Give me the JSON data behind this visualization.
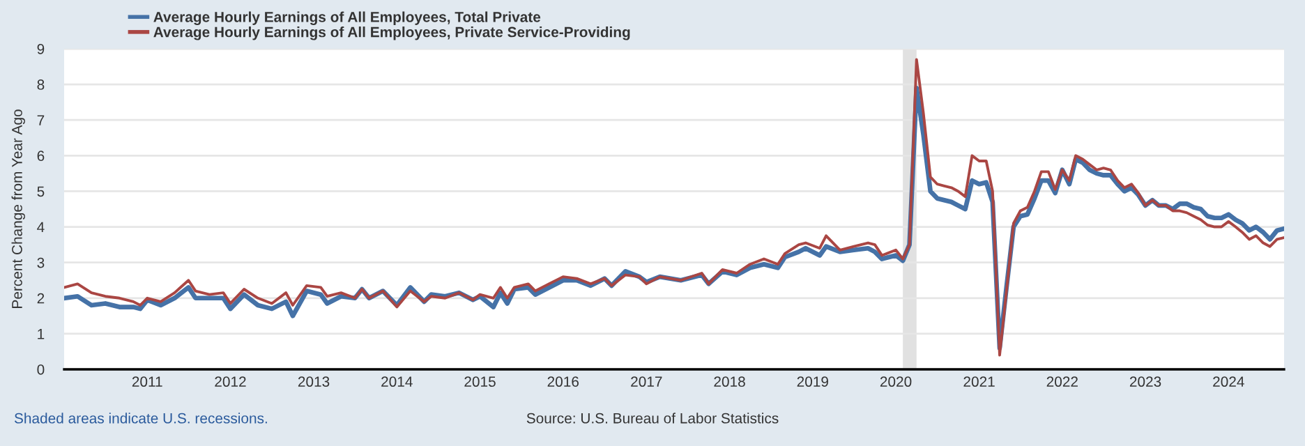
{
  "chart_data": {
    "type": "line",
    "ylabel": "Percent Change from Year Ago",
    "x": [
      "2010-01",
      "2010-03",
      "2010-05",
      "2010-07",
      "2010-09",
      "2010-11",
      "2010-12",
      "2011-01",
      "2011-03",
      "2011-05",
      "2011-07",
      "2011-08",
      "2011-10",
      "2011-12",
      "2012-01",
      "2012-03",
      "2012-05",
      "2012-07",
      "2012-09",
      "2012-10",
      "2012-12",
      "2013-02",
      "2013-03",
      "2013-05",
      "2013-07",
      "2013-08",
      "2013-09",
      "2013-11",
      "2014-01",
      "2014-03",
      "2014-05",
      "2014-06",
      "2014-08",
      "2014-10",
      "2014-12",
      "2015-01",
      "2015-03",
      "2015-04",
      "2015-05",
      "2015-06",
      "2015-08",
      "2015-09",
      "2015-11",
      "2016-01",
      "2016-03",
      "2016-05",
      "2016-07",
      "2016-08",
      "2016-10",
      "2016-12",
      "2017-01",
      "2017-03",
      "2017-06",
      "2017-09",
      "2017-10",
      "2017-12",
      "2018-02",
      "2018-04",
      "2018-06",
      "2018-08",
      "2018-09",
      "2018-11",
      "2018-12",
      "2019-02",
      "2019-03",
      "2019-05",
      "2019-07",
      "2019-09",
      "2019-10",
      "2019-11",
      "2020-01",
      "2020-02",
      "2020-03",
      "2020-04",
      "2020-05",
      "2020-06",
      "2020-07",
      "2020-08",
      "2020-09",
      "2020-10",
      "2020-11",
      "2020-12",
      "2021-01",
      "2021-02",
      "2021-03",
      "2021-04",
      "2021-05",
      "2021-06",
      "2021-07",
      "2021-08",
      "2021-09",
      "2021-10",
      "2021-11",
      "2021-12",
      "2022-01",
      "2022-02",
      "2022-03",
      "2022-04",
      "2022-05",
      "2022-06",
      "2022-07",
      "2022-08",
      "2022-09",
      "2022-10",
      "2022-11",
      "2022-12",
      "2023-01",
      "2023-02",
      "2023-03",
      "2023-04",
      "2023-05",
      "2023-06",
      "2023-07",
      "2023-08",
      "2023-09",
      "2023-10",
      "2023-11",
      "2023-12",
      "2024-01",
      "2024-02",
      "2024-03",
      "2024-04",
      "2024-05",
      "2024-06",
      "2024-07",
      "2024-08",
      "2024-09"
    ],
    "series": [
      {
        "name": "Average Hourly Earnings of All Employees, Total Private",
        "color": "#4572a7",
        "values": [
          2.0,
          2.05,
          1.8,
          1.85,
          1.75,
          1.75,
          1.7,
          1.95,
          1.8,
          2.0,
          2.3,
          2.0,
          2.0,
          2.0,
          1.7,
          2.1,
          1.8,
          1.7,
          1.9,
          1.5,
          2.2,
          2.1,
          1.85,
          2.05,
          2.0,
          2.25,
          2.0,
          2.2,
          1.8,
          2.3,
          1.9,
          2.1,
          2.05,
          2.15,
          1.95,
          2.05,
          1.75,
          2.15,
          1.85,
          2.25,
          2.3,
          2.1,
          2.3,
          2.5,
          2.5,
          2.35,
          2.55,
          2.35,
          2.75,
          2.6,
          2.45,
          2.6,
          2.5,
          2.65,
          2.4,
          2.75,
          2.65,
          2.85,
          2.95,
          2.85,
          3.15,
          3.3,
          3.4,
          3.2,
          3.45,
          3.3,
          3.35,
          3.4,
          3.3,
          3.1,
          3.2,
          3.05,
          3.5,
          7.9,
          6.6,
          5.0,
          4.8,
          4.75,
          4.7,
          4.6,
          4.5,
          5.3,
          5.2,
          5.25,
          4.7,
          0.6,
          2.3,
          4.0,
          4.3,
          4.35,
          4.8,
          5.3,
          5.3,
          4.95,
          5.6,
          5.2,
          5.9,
          5.8,
          5.6,
          5.5,
          5.45,
          5.45,
          5.2,
          5.0,
          5.1,
          4.9,
          4.6,
          4.75,
          4.6,
          4.6,
          4.5,
          4.65,
          4.65,
          4.55,
          4.5,
          4.3,
          4.25,
          4.25,
          4.35,
          4.2,
          4.1,
          3.9,
          4.0,
          3.85,
          3.65,
          3.9,
          3.95
        ]
      },
      {
        "name": "Average Hourly Earnings of All Employees, Private Service-Providing",
        "color": "#aa4643",
        "values": [
          2.3,
          2.4,
          2.15,
          2.05,
          2.0,
          1.9,
          1.8,
          2.0,
          1.9,
          2.15,
          2.5,
          2.2,
          2.1,
          2.15,
          1.85,
          2.25,
          2.0,
          1.85,
          2.15,
          1.8,
          2.35,
          2.3,
          2.05,
          2.15,
          2.0,
          2.25,
          2.0,
          2.2,
          1.75,
          2.2,
          1.9,
          2.05,
          2.0,
          2.15,
          1.95,
          2.1,
          2.0,
          2.3,
          2.0,
          2.3,
          2.4,
          2.2,
          2.4,
          2.6,
          2.55,
          2.4,
          2.55,
          2.35,
          2.65,
          2.6,
          2.4,
          2.6,
          2.5,
          2.7,
          2.4,
          2.8,
          2.7,
          2.95,
          3.1,
          2.95,
          3.25,
          3.5,
          3.55,
          3.4,
          3.75,
          3.35,
          3.45,
          3.55,
          3.5,
          3.2,
          3.35,
          3.1,
          3.5,
          8.7,
          7.2,
          5.4,
          5.2,
          5.15,
          5.1,
          5.0,
          4.85,
          6.0,
          5.85,
          5.85,
          5.0,
          0.4,
          2.2,
          4.1,
          4.45,
          4.55,
          5.0,
          5.55,
          5.55,
          5.05,
          5.6,
          5.3,
          6.0,
          5.9,
          5.75,
          5.6,
          5.65,
          5.6,
          5.3,
          5.1,
          5.2,
          4.95,
          4.6,
          4.75,
          4.6,
          4.6,
          4.45,
          4.45,
          4.4,
          4.3,
          4.2,
          4.05,
          4.0,
          4.0,
          4.15,
          4.0,
          3.85,
          3.65,
          3.75,
          3.55,
          3.45,
          3.65,
          3.7
        ]
      }
    ],
    "xlim": [
      "2010-01",
      "2024-09"
    ],
    "xticks": [
      "2011",
      "2012",
      "2013",
      "2014",
      "2015",
      "2016",
      "2017",
      "2018",
      "2019",
      "2020",
      "2021",
      "2022",
      "2023",
      "2024"
    ],
    "ylim": [
      0,
      9
    ],
    "yticks": [
      0,
      1,
      2,
      3,
      4,
      5,
      6,
      7,
      8,
      9
    ],
    "grid": "y",
    "legend": "top left",
    "bands": [
      {
        "axis": "x",
        "from": "2020-02",
        "to": "2020-04",
        "color": "#e1e1e1"
      }
    ],
    "annotations": [
      "Shaded areas indicate U.S. recessions.",
      "Source: U.S. Bureau of Labor Statistics"
    ]
  }
}
